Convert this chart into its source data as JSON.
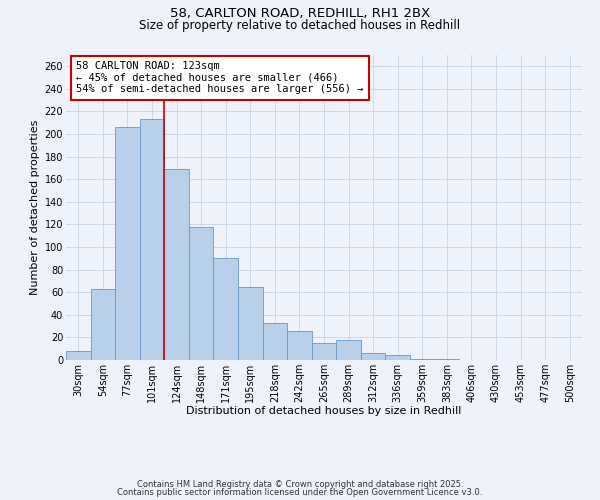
{
  "title1": "58, CARLTON ROAD, REDHILL, RH1 2BX",
  "title2": "Size of property relative to detached houses in Redhill",
  "xlabel": "Distribution of detached houses by size in Redhill",
  "ylabel": "Number of detached properties",
  "bin_labels": [
    "30sqm",
    "54sqm",
    "77sqm",
    "101sqm",
    "124sqm",
    "148sqm",
    "171sqm",
    "195sqm",
    "218sqm",
    "242sqm",
    "265sqm",
    "289sqm",
    "312sqm",
    "336sqm",
    "359sqm",
    "383sqm",
    "406sqm",
    "430sqm",
    "453sqm",
    "477sqm",
    "500sqm"
  ],
  "bar_heights": [
    8,
    63,
    206,
    213,
    169,
    118,
    90,
    65,
    33,
    26,
    15,
    18,
    6,
    4,
    1,
    1,
    0,
    0,
    0,
    0,
    0
  ],
  "bar_color": "#b8d0ea",
  "bar_edge_color": "#6699cc",
  "background_color": "#eef2fa",
  "grid_color": "#c8d4e8",
  "vline_color": "#cc0000",
  "annotation_text": "58 CARLTON ROAD: 123sqm\n← 45% of detached houses are smaller (466)\n54% of semi-detached houses are larger (556) →",
  "annotation_box_color": "#ffffff",
  "annotation_box_edge": "#cc0000",
  "footer1": "Contains HM Land Registry data © Crown copyright and database right 2025.",
  "footer2": "Contains public sector information licensed under the Open Government Licence v3.0.",
  "ylim": [
    0,
    270
  ],
  "yticks": [
    0,
    20,
    40,
    60,
    80,
    100,
    120,
    140,
    160,
    180,
    200,
    220,
    240,
    260
  ],
  "title_fontsize": 9.5,
  "subtitle_fontsize": 8.5,
  "axis_fontsize": 8,
  "tick_fontsize": 7,
  "annotation_fontsize": 7.5,
  "footer_fontsize": 6
}
